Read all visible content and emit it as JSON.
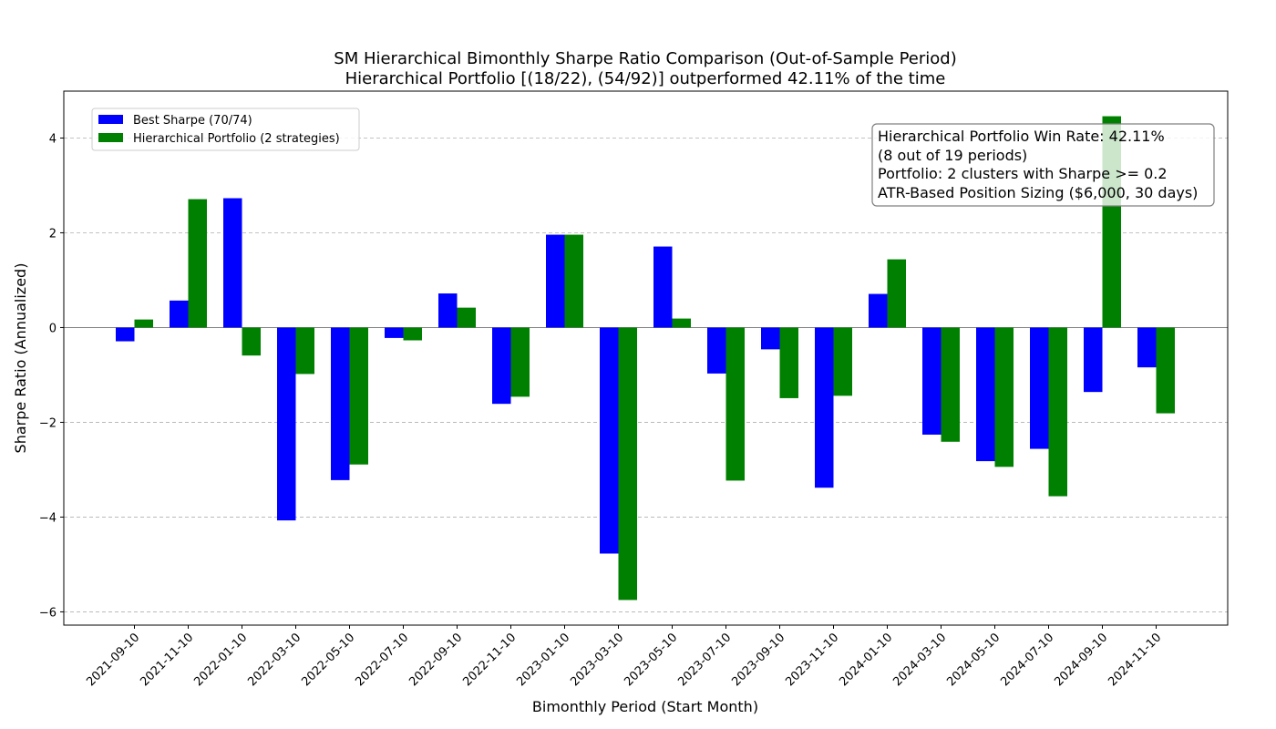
{
  "chart_data": {
    "type": "bar",
    "title": "SM Hierarchical Bimonthly Sharpe Ratio Comparison (Out-of-Sample Period)",
    "subtitle": "Hierarchical Portfolio [(18/22), (54/92)] outperformed 42.11% of the time",
    "xlabel": "Bimonthly Period (Start Month)",
    "ylabel": "Sharpe Ratio (Annualized)",
    "ylim": [
      -6.28,
      4.99
    ],
    "yticks": [
      -6,
      -4,
      -2,
      0,
      2,
      4
    ],
    "ytick_labels": [
      "−6",
      "−4",
      "−2",
      "0",
      "2",
      "4"
    ],
    "grid": true,
    "legend_position": "upper left",
    "categories": [
      "2021-09-10",
      "2021-11-10",
      "2022-01-10",
      "2022-03-10",
      "2022-05-10",
      "2022-07-10",
      "2022-09-10",
      "2022-11-10",
      "2023-01-10",
      "2023-03-10",
      "2023-05-10",
      "2023-07-10",
      "2023-09-10",
      "2023-11-10",
      "2024-01-10",
      "2024-03-10",
      "2024-05-10",
      "2024-07-10",
      "2024-09-10",
      "2024-11-10"
    ],
    "series": [
      {
        "name": "Best Sharpe (70/74)",
        "color": "#0000ff",
        "values": [
          -0.29,
          0.57,
          2.73,
          -4.07,
          -3.22,
          -0.22,
          0.72,
          -1.61,
          1.96,
          -4.77,
          1.71,
          -0.97,
          -0.46,
          -3.38,
          0.71,
          -2.26,
          -2.82,
          -2.56,
          -1.36,
          -0.84
        ]
      },
      {
        "name": "Hierarchical Portfolio (2 strategies)",
        "color": "#008000",
        "values": [
          0.17,
          2.71,
          -0.59,
          -0.98,
          -2.89,
          -0.27,
          0.42,
          -1.46,
          1.96,
          -5.75,
          0.19,
          -3.23,
          -1.49,
          -1.44,
          1.44,
          -2.41,
          -2.94,
          -3.56,
          4.46,
          -1.81
        ]
      }
    ],
    "annotation": [
      "Hierarchical Portfolio Win Rate: 42.11%",
      "(8 out of 19 periods)",
      "Portfolio: 2 clusters with Sharpe >= 0.2",
      "ATR-Based Position Sizing ($6,000, 30 days)"
    ]
  }
}
